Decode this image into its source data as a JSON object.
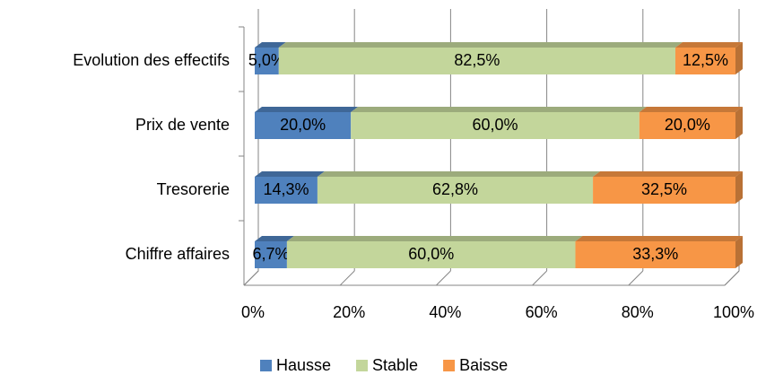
{
  "chart_data": {
    "type": "bar",
    "orientation": "horizontal",
    "stacked": "percent",
    "three_d": true,
    "categories": [
      "Evolution des effectifs",
      "Prix de vente",
      "Tresorerie",
      "Chiffre affaires"
    ],
    "series": [
      {
        "name": "Hausse",
        "color": "#4f81bd",
        "values": [
          5.0,
          20.0,
          14.3,
          6.7
        ],
        "value_labels": [
          "5,0%",
          "20,0%",
          "14,3%",
          "6,7%"
        ]
      },
      {
        "name": "Stable",
        "color": "#c3d69b",
        "values": [
          82.5,
          60.0,
          62.8,
          60.0
        ],
        "value_labels": [
          "82,5%",
          "60,0%",
          "62,8%",
          "60,0%"
        ]
      },
      {
        "name": "Baisse",
        "color": "#f79646",
        "values": [
          12.5,
          20.0,
          32.5,
          33.3
        ],
        "value_labels": [
          "12,5%",
          "20,0%",
          "32,5%",
          "33,3%"
        ]
      }
    ],
    "xlim": [
      0,
      100
    ],
    "xticks": [
      {
        "value": 0,
        "label": "0%"
      },
      {
        "value": 20,
        "label": "20%"
      },
      {
        "value": 40,
        "label": "40%"
      },
      {
        "value": 60,
        "label": "60%"
      },
      {
        "value": 80,
        "label": "80%"
      },
      {
        "value": 100,
        "label": "100%"
      }
    ],
    "grid": true,
    "legend": "bottom"
  }
}
